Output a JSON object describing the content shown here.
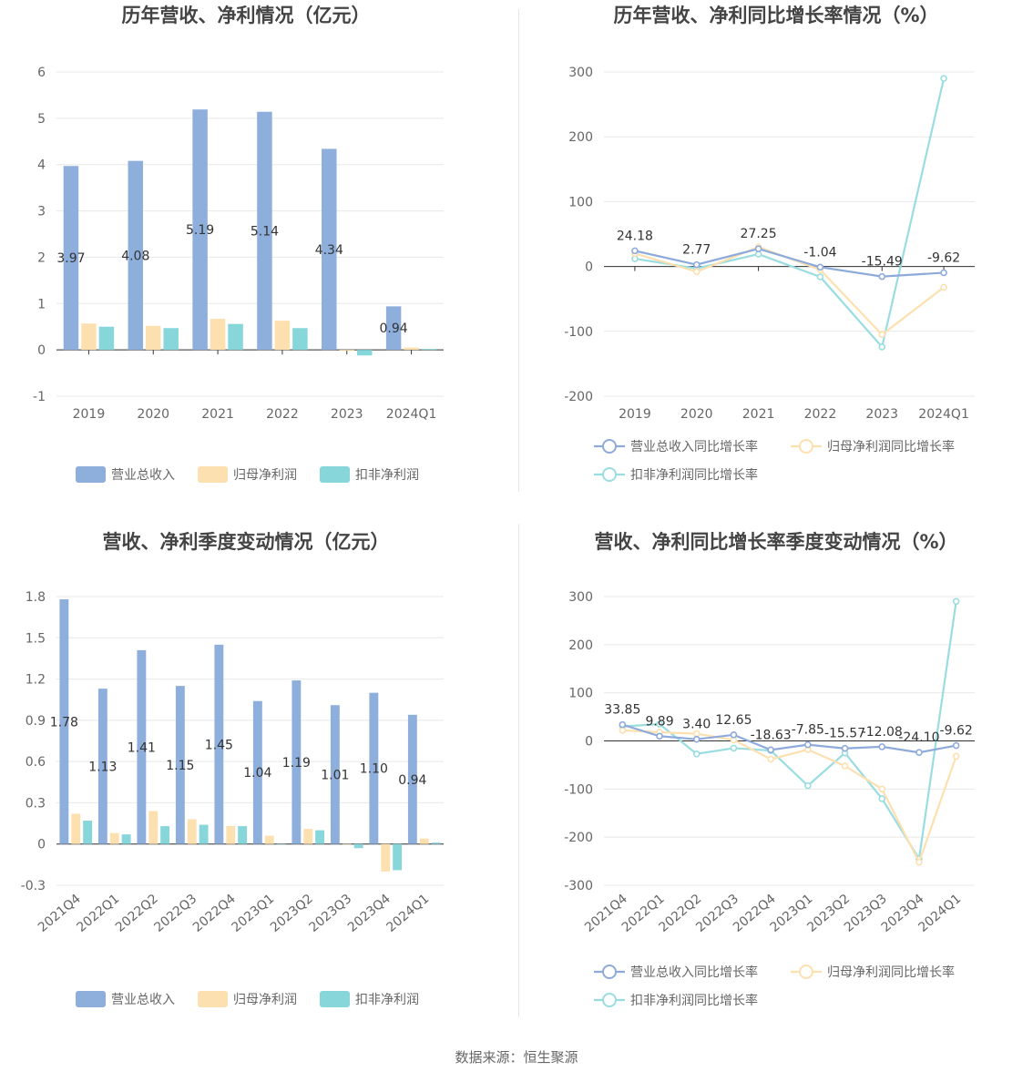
{
  "source_text": "数据来源：恒生聚源",
  "colors": {
    "revenue": "#8eaedc",
    "net_profit": "#fde0b0",
    "deducted_profit": "#86d6da",
    "grid": "#e8e8e8",
    "axis": "#333333"
  },
  "chart_data": [
    {
      "type": "bar",
      "title": "历年营收、净利情况（亿元）",
      "categories": [
        "2019",
        "2020",
        "2021",
        "2022",
        "2023",
        "2024Q1"
      ],
      "ylim": [
        -1,
        6
      ],
      "yticks": [
        "6",
        "5",
        "4",
        "3",
        "2",
        "1",
        "0",
        "-1"
      ],
      "grid": true,
      "legend_position": "bottom",
      "series": [
        {
          "name": "营业总收入",
          "values": [
            3.97,
            4.08,
            5.19,
            5.14,
            4.34,
            0.94
          ],
          "labels": [
            "3.97",
            "4.08",
            "5.19",
            "5.14",
            "4.34",
            "0.94"
          ]
        },
        {
          "name": "归母净利润",
          "values": [
            0.57,
            0.52,
            0.67,
            0.63,
            -0.02,
            0.05
          ]
        },
        {
          "name": "扣非净利润",
          "values": [
            0.5,
            0.47,
            0.56,
            0.47,
            -0.12,
            0.02
          ]
        }
      ]
    },
    {
      "type": "line",
      "title": "历年营收、净利同比增长率情况（%）",
      "categories": [
        "2019",
        "2020",
        "2021",
        "2022",
        "2023",
        "2024Q1"
      ],
      "ylim": [
        -200,
        300
      ],
      "yticks": [
        "300",
        "200",
        "100",
        "0",
        "-100",
        "-200"
      ],
      "grid": true,
      "legend_position": "bottom",
      "series": [
        {
          "name": "营业总收入同比增长率",
          "values": [
            24.18,
            2.77,
            27.25,
            -1.04,
            -15.49,
            -9.62
          ],
          "labels": [
            "24.18",
            "2.77",
            "27.25",
            "-1.04",
            "-15.49",
            "-9.62"
          ]
        },
        {
          "name": "归母净利润同比增长率",
          "values": [
            20,
            -8,
            30,
            -5,
            -105,
            -32
          ]
        },
        {
          "name": "扣非净利润同比增长率",
          "values": [
            12,
            -3,
            19,
            -16,
            -124,
            290
          ]
        }
      ]
    },
    {
      "type": "bar",
      "title": "营收、净利季度变动情况（亿元）",
      "categories": [
        "2021Q4",
        "2022Q1",
        "2022Q2",
        "2022Q3",
        "2022Q4",
        "2023Q1",
        "2023Q2",
        "2023Q3",
        "2023Q4",
        "2024Q1"
      ],
      "ylim": [
        -0.3,
        1.8
      ],
      "yticks": [
        "1.8",
        "1.5",
        "1.2",
        "0.9",
        "0.6",
        "0.3",
        "0",
        "-0.3"
      ],
      "grid": true,
      "legend_position": "bottom",
      "series": [
        {
          "name": "营业总收入",
          "values": [
            1.78,
            1.13,
            1.41,
            1.15,
            1.45,
            1.04,
            1.19,
            1.01,
            1.1,
            0.94
          ],
          "labels": [
            "1.78",
            "1.13",
            "1.41",
            "1.15",
            "1.45",
            "1.04",
            "1.19",
            "1.01",
            "1.10",
            "0.94"
          ]
        },
        {
          "name": "归母净利润",
          "values": [
            0.22,
            0.08,
            0.24,
            0.18,
            0.13,
            0.06,
            0.11,
            0.0,
            -0.2,
            0.04
          ]
        },
        {
          "name": "扣非净利润",
          "values": [
            0.17,
            0.07,
            0.13,
            0.14,
            0.13,
            0.0,
            0.1,
            -0.03,
            -0.19,
            0.01
          ]
        }
      ]
    },
    {
      "type": "line",
      "title": "营收、净利同比增长率季度变动情况（%）",
      "categories": [
        "2021Q4",
        "2022Q1",
        "2022Q2",
        "2022Q3",
        "2022Q4",
        "2023Q1",
        "2023Q2",
        "2023Q3",
        "2023Q4",
        "2024Q1"
      ],
      "ylim": [
        -300,
        300
      ],
      "yticks": [
        "300",
        "200",
        "100",
        "0",
        "-100",
        "-200",
        "-300"
      ],
      "grid": true,
      "legend_position": "bottom",
      "series": [
        {
          "name": "营业总收入同比增长率",
          "values": [
            33.85,
            9.89,
            3.4,
            12.65,
            -18.63,
            -7.85,
            -15.57,
            -12.08,
            -24.1,
            -9.62
          ],
          "labels": [
            "33.85",
            "9.89",
            "3.40",
            "12.65",
            "-18.63",
            "-7.85",
            "-15.57",
            "-12.08",
            "-24.10",
            "-9.62"
          ]
        },
        {
          "name": "归母净利润同比增长率",
          "values": [
            22,
            18,
            15,
            2,
            -38,
            -18,
            -52,
            -100,
            -252,
            -32
          ]
        },
        {
          "name": "扣非净利润同比增长率",
          "values": [
            30,
            35,
            -27,
            -15,
            -20,
            -93,
            -25,
            -120,
            -245,
            290
          ]
        }
      ]
    }
  ]
}
